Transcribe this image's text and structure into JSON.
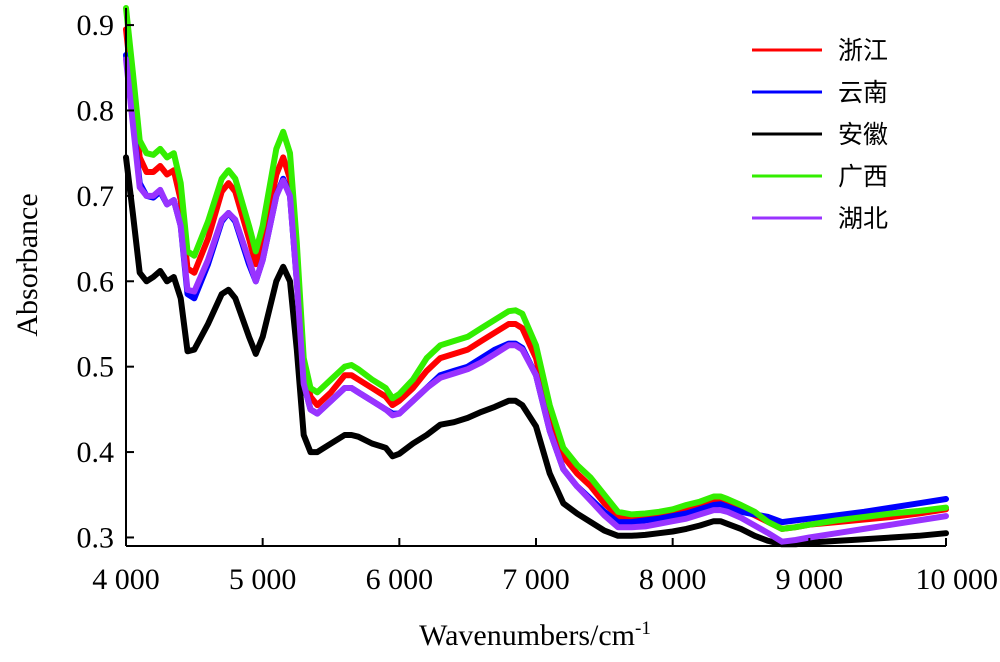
{
  "chart_data": {
    "type": "line",
    "title": "",
    "xlabel": "Wavenumbers/cm",
    "xlabel_sup": "-1",
    "ylabel": "Absorbance",
    "xlim": [
      4000,
      10000
    ],
    "ylim": [
      0.29,
      0.92
    ],
    "xticks": [
      4000,
      5000,
      6000,
      7000,
      8000,
      9000,
      10000
    ],
    "xtick_labels": [
      "4 000",
      "5 000",
      "6 000",
      "7 000",
      "8 000",
      "9 000",
      "10 000"
    ],
    "yticks": [
      0.3,
      0.4,
      0.5,
      0.6,
      0.7,
      0.8,
      0.9
    ],
    "ytick_labels": [
      "0.3",
      "0.4",
      "0.5",
      "0.6",
      "0.7",
      "0.8",
      "0.9"
    ],
    "grid": false,
    "legend_position": "top-right",
    "x": [
      4000,
      4050,
      4100,
      4150,
      4200,
      4250,
      4300,
      4350,
      4400,
      4450,
      4500,
      4600,
      4700,
      4750,
      4800,
      4900,
      4950,
      5000,
      5100,
      5150,
      5200,
      5250,
      5300,
      5350,
      5400,
      5500,
      5600,
      5650,
      5700,
      5800,
      5900,
      5950,
      6000,
      6100,
      6200,
      6300,
      6400,
      6500,
      6600,
      6700,
      6800,
      6850,
      6900,
      7000,
      7100,
      7200,
      7300,
      7400,
      7500,
      7600,
      7700,
      7800,
      7900,
      8000,
      8100,
      8200,
      8300,
      8350,
      8400,
      8500,
      8600,
      8700,
      8800,
      8900,
      9000,
      9200,
      9400,
      9600,
      9800,
      10000
    ],
    "series": [
      {
        "name": "浙江",
        "color": "#ff0000",
        "values": [
          0.895,
          0.82,
          0.745,
          0.728,
          0.728,
          0.735,
          0.725,
          0.73,
          0.695,
          0.615,
          0.61,
          0.65,
          0.705,
          0.715,
          0.705,
          0.65,
          0.62,
          0.645,
          0.725,
          0.745,
          0.72,
          0.62,
          0.5,
          0.465,
          0.455,
          0.47,
          0.49,
          0.49,
          0.485,
          0.475,
          0.465,
          0.455,
          0.46,
          0.475,
          0.495,
          0.51,
          0.515,
          0.52,
          0.53,
          0.54,
          0.55,
          0.55,
          0.545,
          0.51,
          0.44,
          0.395,
          0.375,
          0.36,
          0.34,
          0.325,
          0.322,
          0.323,
          0.325,
          0.328,
          0.332,
          0.336,
          0.342,
          0.343,
          0.34,
          0.333,
          0.326,
          0.318,
          0.31,
          0.312,
          0.315,
          0.318,
          0.321,
          0.324,
          0.328,
          0.333
        ]
      },
      {
        "name": "云南",
        "color": "#0000ff",
        "values": [
          0.865,
          0.79,
          0.715,
          0.7,
          0.698,
          0.705,
          0.69,
          0.695,
          0.665,
          0.585,
          0.58,
          0.62,
          0.67,
          0.68,
          0.67,
          0.62,
          0.6,
          0.625,
          0.7,
          0.72,
          0.7,
          0.6,
          0.48,
          0.45,
          0.445,
          0.46,
          0.475,
          0.475,
          0.47,
          0.46,
          0.45,
          0.445,
          0.445,
          0.46,
          0.475,
          0.49,
          0.495,
          0.5,
          0.51,
          0.52,
          0.527,
          0.527,
          0.522,
          0.49,
          0.425,
          0.38,
          0.36,
          0.345,
          0.33,
          0.318,
          0.318,
          0.32,
          0.322,
          0.325,
          0.328,
          0.333,
          0.338,
          0.339,
          0.336,
          0.33,
          0.327,
          0.324,
          0.318,
          0.32,
          0.322,
          0.326,
          0.33,
          0.335,
          0.34,
          0.345
        ]
      },
      {
        "name": "安徽",
        "color": "#000000",
        "values": [
          0.745,
          0.68,
          0.61,
          0.6,
          0.605,
          0.612,
          0.6,
          0.605,
          0.58,
          0.518,
          0.52,
          0.55,
          0.585,
          0.59,
          0.58,
          0.535,
          0.515,
          0.535,
          0.6,
          0.617,
          0.6,
          0.52,
          0.42,
          0.4,
          0.4,
          0.41,
          0.42,
          0.42,
          0.418,
          0.41,
          0.405,
          0.395,
          0.398,
          0.41,
          0.42,
          0.432,
          0.435,
          0.44,
          0.447,
          0.453,
          0.46,
          0.46,
          0.455,
          0.43,
          0.375,
          0.34,
          0.328,
          0.318,
          0.308,
          0.302,
          0.302,
          0.303,
          0.305,
          0.307,
          0.31,
          0.314,
          0.319,
          0.319,
          0.316,
          0.31,
          0.302,
          0.296,
          0.292,
          0.292,
          0.294,
          0.296,
          0.298,
          0.3,
          0.302,
          0.305
        ]
      },
      {
        "name": "广西",
        "color": "#33ee00",
        "values": [
          0.92,
          0.845,
          0.765,
          0.75,
          0.748,
          0.755,
          0.745,
          0.75,
          0.715,
          0.635,
          0.63,
          0.67,
          0.72,
          0.73,
          0.72,
          0.665,
          0.635,
          0.665,
          0.755,
          0.775,
          0.75,
          0.645,
          0.51,
          0.475,
          0.47,
          0.485,
          0.5,
          0.502,
          0.497,
          0.485,
          0.475,
          0.463,
          0.468,
          0.485,
          0.51,
          0.525,
          0.53,
          0.535,
          0.545,
          0.555,
          0.565,
          0.566,
          0.562,
          0.525,
          0.455,
          0.405,
          0.385,
          0.37,
          0.35,
          0.33,
          0.327,
          0.328,
          0.33,
          0.333,
          0.338,
          0.342,
          0.348,
          0.348,
          0.345,
          0.338,
          0.33,
          0.318,
          0.31,
          0.312,
          0.315,
          0.32,
          0.324,
          0.328,
          0.331,
          0.335
        ]
      },
      {
        "name": "湖北",
        "color": "#9933ff",
        "values": [
          0.86,
          0.785,
          0.71,
          0.7,
          0.7,
          0.707,
          0.69,
          0.695,
          0.665,
          0.59,
          0.588,
          0.625,
          0.672,
          0.68,
          0.672,
          0.625,
          0.6,
          0.625,
          0.7,
          0.718,
          0.7,
          0.6,
          0.48,
          0.45,
          0.445,
          0.46,
          0.475,
          0.475,
          0.47,
          0.46,
          0.45,
          0.443,
          0.445,
          0.46,
          0.475,
          0.487,
          0.492,
          0.497,
          0.505,
          0.515,
          0.525,
          0.525,
          0.52,
          0.49,
          0.425,
          0.38,
          0.36,
          0.343,
          0.326,
          0.312,
          0.312,
          0.313,
          0.316,
          0.319,
          0.322,
          0.327,
          0.332,
          0.332,
          0.33,
          0.323,
          0.314,
          0.305,
          0.295,
          0.297,
          0.3,
          0.305,
          0.31,
          0.315,
          0.32,
          0.325
        ]
      }
    ]
  }
}
